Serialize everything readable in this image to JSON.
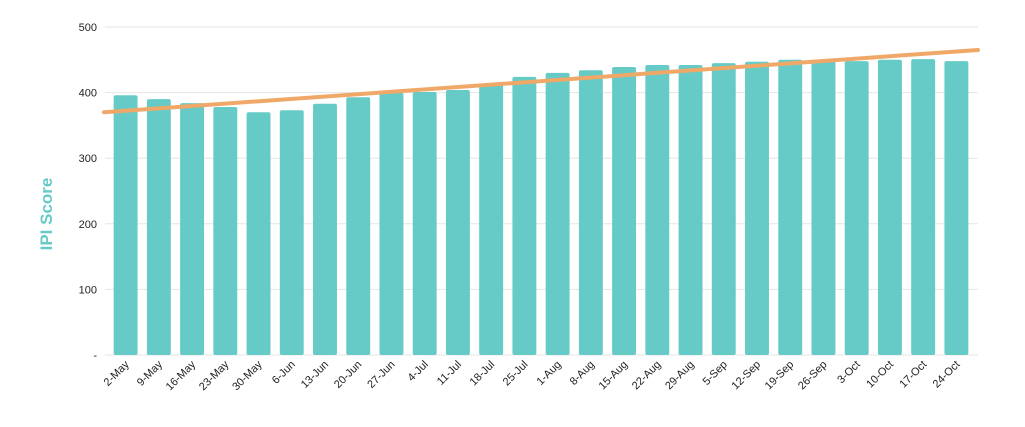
{
  "chart_data": {
    "type": "bar",
    "ylabel": "IPI Score",
    "categories": [
      "2-May",
      "9-May",
      "16-May",
      "23-May",
      "30-May",
      "6-Jun",
      "13-Jun",
      "20-Jun",
      "27-Jun",
      "4-Jul",
      "11-Jul",
      "18-Jul",
      "25-Jul",
      "1-Aug",
      "8-Aug",
      "15-Aug",
      "22-Aug",
      "29-Aug",
      "5-Sep",
      "12-Sep",
      "19-Sep",
      "26-Sep",
      "3-Oct",
      "10-Oct",
      "17-Oct",
      "24-Oct"
    ],
    "values": [
      396,
      390,
      384,
      378,
      370,
      373,
      383,
      393,
      400,
      401,
      404,
      412,
      424,
      430,
      434,
      439,
      442,
      442,
      445,
      447,
      450,
      450,
      448,
      450,
      451,
      448
    ],
    "color": "#66cbc6",
    "trendline": {
      "start": 370,
      "end": 465,
      "color": "#f0a868"
    },
    "ylim": [
      0,
      500
    ],
    "yticks": [
      {
        "value": 0,
        "label": "-"
      },
      100,
      200,
      300,
      400,
      500
    ],
    "grid": true
  }
}
